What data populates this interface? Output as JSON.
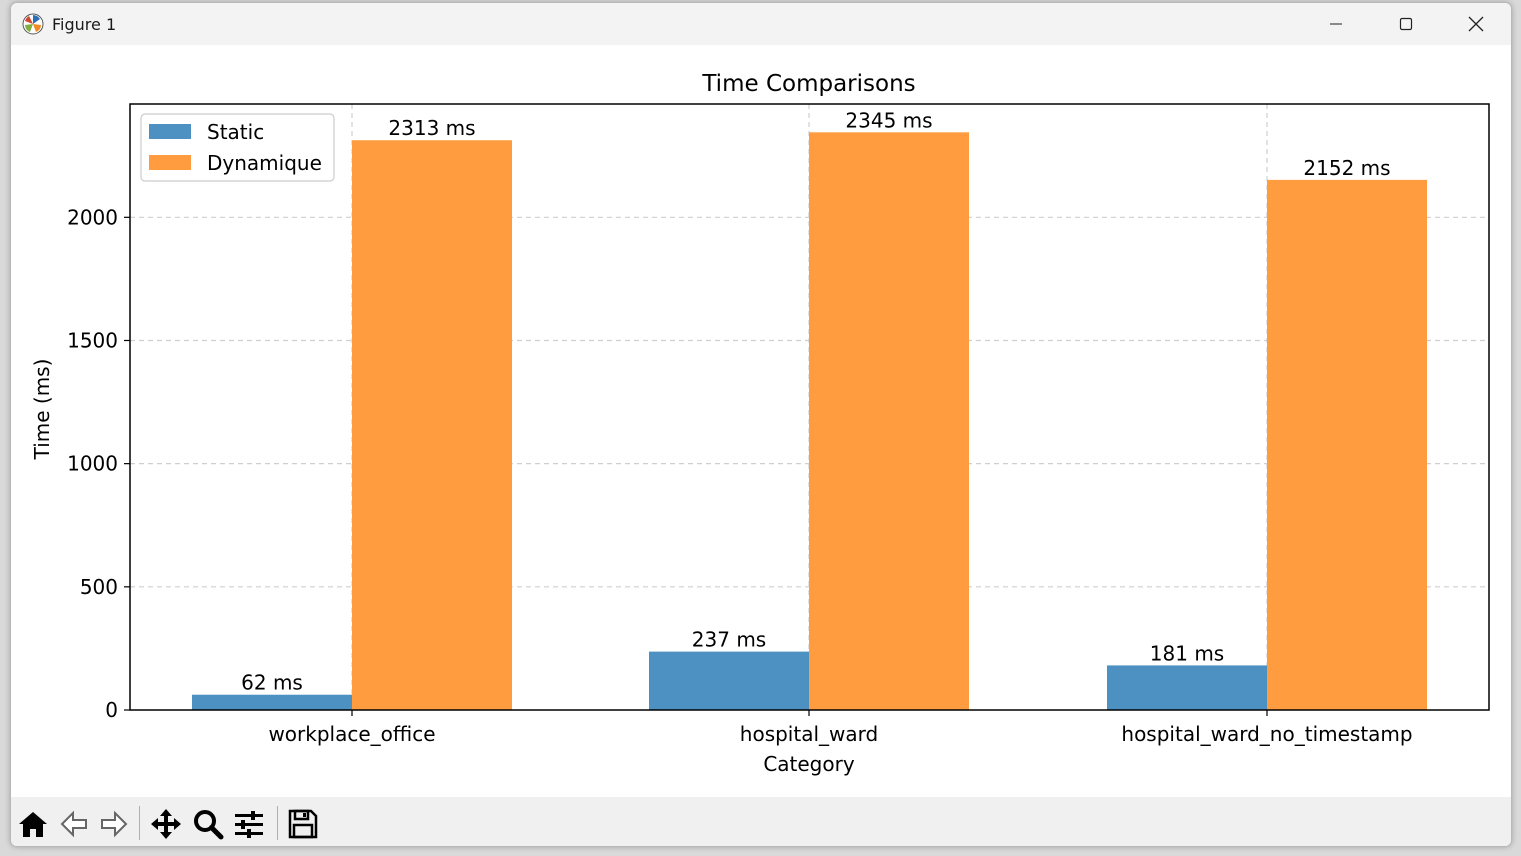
{
  "window": {
    "title": "Figure 1"
  },
  "icons": {
    "app": "matplotlib-logo-icon",
    "minimize": "minimize-icon",
    "maximize": "maximize-icon",
    "close": "close-icon",
    "home": "home-icon",
    "back": "back-arrow-icon",
    "forward": "forward-arrow-icon",
    "pan": "move-arrows-icon",
    "zoom": "magnifier-icon",
    "configure": "sliders-icon",
    "save": "floppy-disk-icon"
  },
  "chart_data": {
    "type": "bar",
    "title": "Time Comparisons",
    "xlabel": "Category",
    "ylabel": "Time (ms)",
    "categories": [
      "workplace_office",
      "hospital_ward",
      "hospital_ward_no_timestamp"
    ],
    "series": [
      {
        "name": "Static",
        "values": [
          62,
          237,
          181
        ],
        "labels": [
          "62 ms",
          "237 ms",
          "181 ms"
        ],
        "color": "#4c91c2"
      },
      {
        "name": "Dynamique",
        "values": [
          2313,
          2345,
          2152
        ],
        "labels": [
          "2313 ms",
          "2345 ms",
          "2152 ms"
        ],
        "color": "#ff9c40"
      }
    ],
    "yticks": [
      0,
      500,
      1000,
      1500,
      2000
    ],
    "ylim": [
      0,
      2460
    ],
    "grid": true,
    "grid_style": "dashed",
    "legend_position": "upper-left"
  }
}
